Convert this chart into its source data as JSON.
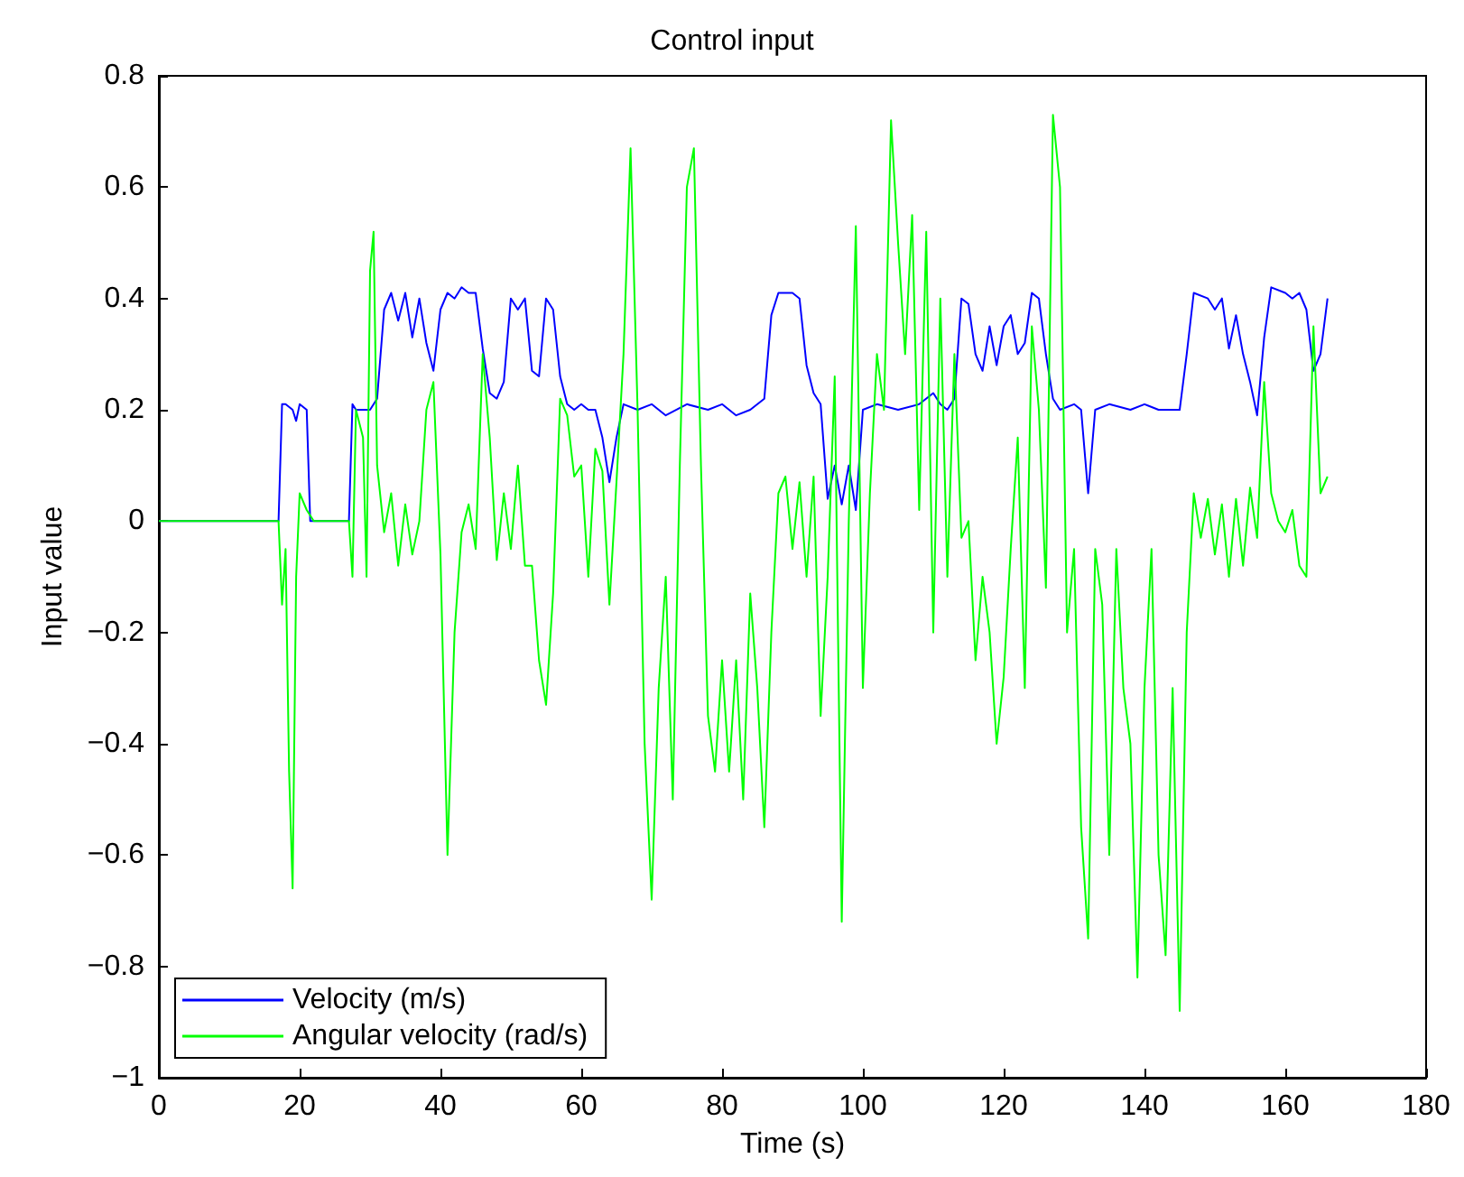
{
  "chart_data": {
    "type": "line",
    "title": "Control input",
    "xlabel": "Time (s)",
    "ylabel": "Input value",
    "xlim": [
      0,
      180
    ],
    "xticks": [
      0,
      20,
      40,
      60,
      80,
      100,
      120,
      140,
      160,
      180
    ],
    "ylim": [
      -1,
      0.8
    ],
    "yticks": [
      {
        "value": -1,
        "label": "−1"
      },
      {
        "value": -0.8,
        "label": "−0.8"
      },
      {
        "value": -0.6,
        "label": "−0.6"
      },
      {
        "value": -0.4,
        "label": "−0.4"
      },
      {
        "value": -0.2,
        "label": "−0.2"
      },
      0,
      0.2,
      0.4,
      0.6,
      0.8
    ],
    "grid": false,
    "legend": "bottom left",
    "series": [
      {
        "name": "Velocity (m/s)",
        "color": "#0000ff",
        "x": [
          0,
          17,
          17.5,
          18,
          19,
          19.5,
          20,
          21,
          21.5,
          22,
          27,
          27.5,
          28,
          30,
          31,
          32,
          33,
          34,
          35,
          36,
          37,
          38,
          39,
          40,
          41,
          42,
          43,
          44,
          45,
          46,
          47,
          48,
          49,
          50,
          51,
          52,
          53,
          54,
          55,
          56,
          57,
          58,
          59,
          60,
          61,
          62,
          63,
          64,
          65,
          66,
          68,
          70,
          72,
          75,
          78,
          80,
          82,
          84,
          86,
          87,
          88,
          90,
          91,
          92,
          93,
          94,
          95,
          96,
          97,
          98,
          99,
          100,
          102,
          105,
          108,
          110,
          111,
          112,
          113,
          114,
          115,
          116,
          117,
          118,
          119,
          120,
          121,
          122,
          123,
          124,
          125,
          126,
          127,
          128,
          130,
          131,
          132,
          133,
          135,
          138,
          140,
          142,
          145,
          146,
          147,
          149,
          150,
          151,
          152,
          153,
          154,
          155,
          156,
          157,
          158,
          160,
          161,
          162,
          163,
          164,
          165,
          166
        ],
        "values": [
          0,
          0,
          0.21,
          0.21,
          0.2,
          0.18,
          0.21,
          0.2,
          0,
          0,
          0,
          0.21,
          0.2,
          0.2,
          0.22,
          0.38,
          0.41,
          0.36,
          0.41,
          0.33,
          0.4,
          0.32,
          0.27,
          0.38,
          0.41,
          0.4,
          0.42,
          0.41,
          0.41,
          0.31,
          0.23,
          0.22,
          0.25,
          0.4,
          0.38,
          0.4,
          0.27,
          0.26,
          0.4,
          0.38,
          0.26,
          0.21,
          0.2,
          0.21,
          0.2,
          0.2,
          0.15,
          0.07,
          0.15,
          0.21,
          0.2,
          0.21,
          0.19,
          0.21,
          0.2,
          0.21,
          0.19,
          0.2,
          0.22,
          0.37,
          0.41,
          0.41,
          0.4,
          0.28,
          0.23,
          0.21,
          0.04,
          0.1,
          0.03,
          0.1,
          0.02,
          0.2,
          0.21,
          0.2,
          0.21,
          0.23,
          0.21,
          0.2,
          0.22,
          0.4,
          0.39,
          0.3,
          0.27,
          0.35,
          0.28,
          0.35,
          0.37,
          0.3,
          0.32,
          0.41,
          0.4,
          0.3,
          0.22,
          0.2,
          0.21,
          0.2,
          0.05,
          0.2,
          0.21,
          0.2,
          0.21,
          0.2,
          0.2,
          0.3,
          0.41,
          0.4,
          0.38,
          0.4,
          0.31,
          0.37,
          0.3,
          0.25,
          0.19,
          0.33,
          0.42,
          0.41,
          0.4,
          0.41,
          0.38,
          0.27,
          0.3,
          0.4
        ]
      },
      {
        "name": "Angular velocity (rad/s)",
        "color": "#00ff00",
        "x": [
          0,
          17,
          17.5,
          18,
          18.5,
          19,
          19.5,
          20,
          21,
          22,
          27,
          27.5,
          28,
          29,
          29.5,
          30,
          30.5,
          31,
          32,
          33,
          34,
          35,
          36,
          37,
          38,
          39,
          40,
          41,
          42,
          43,
          44,
          45,
          46,
          47,
          48,
          49,
          50,
          51,
          52,
          53,
          54,
          55,
          56,
          57,
          58,
          59,
          60,
          61,
          62,
          63,
          64,
          65,
          66,
          67,
          68,
          69,
          70,
          71,
          72,
          73,
          74,
          75,
          76,
          77,
          78,
          79,
          80,
          81,
          82,
          83,
          84,
          85,
          86,
          87,
          88,
          89,
          90,
          91,
          92,
          93,
          94,
          95,
          96,
          97,
          98,
          99,
          100,
          101,
          102,
          103,
          104,
          105,
          106,
          107,
          108,
          109,
          110,
          111,
          112,
          113,
          114,
          115,
          116,
          117,
          118,
          119,
          120,
          121,
          122,
          123,
          124,
          125,
          126,
          127,
          128,
          129,
          130,
          131,
          132,
          133,
          134,
          135,
          136,
          137,
          138,
          139,
          140,
          141,
          142,
          143,
          144,
          145,
          146,
          147,
          148,
          149,
          150,
          151,
          152,
          153,
          154,
          155,
          156,
          157,
          158,
          159,
          160,
          161,
          162,
          163,
          164,
          165,
          166
        ],
        "values": [
          0,
          0,
          -0.15,
          -0.05,
          -0.45,
          -0.66,
          -0.1,
          0.05,
          0.02,
          0,
          0,
          -0.1,
          0.2,
          0.15,
          -0.1,
          0.45,
          0.52,
          0.1,
          -0.02,
          0.05,
          -0.08,
          0.03,
          -0.06,
          0,
          0.2,
          0.25,
          -0.06,
          -0.6,
          -0.2,
          -0.02,
          0.03,
          -0.05,
          0.3,
          0.15,
          -0.07,
          0.05,
          -0.05,
          0.1,
          -0.08,
          -0.08,
          -0.25,
          -0.33,
          -0.13,
          0.22,
          0.19,
          0.08,
          0.1,
          -0.1,
          0.13,
          0.09,
          -0.15,
          0.07,
          0.3,
          0.67,
          0.2,
          -0.4,
          -0.68,
          -0.3,
          -0.1,
          -0.5,
          0.1,
          0.6,
          0.67,
          0.1,
          -0.35,
          -0.45,
          -0.25,
          -0.45,
          -0.25,
          -0.5,
          -0.13,
          -0.3,
          -0.55,
          -0.2,
          0.05,
          0.08,
          -0.05,
          0.07,
          -0.1,
          0.08,
          -0.35,
          -0.1,
          0.26,
          -0.72,
          0,
          0.53,
          -0.3,
          0.05,
          0.3,
          0.2,
          0.72,
          0.5,
          0.3,
          0.55,
          0.02,
          0.52,
          -0.2,
          0.4,
          -0.1,
          0.3,
          -0.03,
          0,
          -0.25,
          -0.1,
          -0.2,
          -0.4,
          -0.28,
          -0.05,
          0.15,
          -0.3,
          0.35,
          0.2,
          -0.12,
          0.73,
          0.6,
          -0.2,
          -0.05,
          -0.55,
          -0.75,
          -0.05,
          -0.15,
          -0.6,
          -0.05,
          -0.3,
          -0.4,
          -0.82,
          -0.3,
          -0.05,
          -0.6,
          -0.78,
          -0.3,
          -0.88,
          -0.2,
          0.05,
          -0.03,
          0.04,
          -0.06,
          0.03,
          -0.1,
          0.04,
          -0.08,
          0.06,
          -0.03,
          0.25,
          0.05,
          0,
          -0.02,
          0.02,
          -0.08,
          -0.1,
          0.35,
          0.05,
          0.08
        ]
      }
    ]
  }
}
